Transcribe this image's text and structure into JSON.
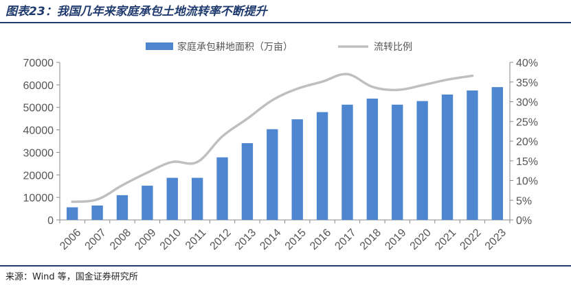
{
  "figure": {
    "title": "图表23：我国几年来家庭承包土地流转率不断提升",
    "source": "来源：Wind 等，国金证券研究所"
  },
  "colors": {
    "bar": "#4f86d0",
    "line": "#bfbfbf",
    "rule": "#1f3a6e",
    "axis": "#888888"
  },
  "chart_data": {
    "type": "bar",
    "title": "",
    "xlabel": "",
    "ylabel": "",
    "categories": [
      "2006",
      "2007",
      "2008",
      "2009",
      "2010",
      "2011",
      "2012",
      "2013",
      "2014",
      "2015",
      "2016",
      "2017",
      "2018",
      "2019",
      "2020",
      "2021",
      "2022",
      "2023"
    ],
    "series": [
      {
        "name": "家庭承包耕地面积（万亩）",
        "type": "bar",
        "axis": "left",
        "values": [
          5600,
          6400,
          11000,
          15200,
          18700,
          18700,
          27800,
          34100,
          40300,
          44700,
          47900,
          51200,
          53900,
          51200,
          52800,
          55700,
          57500,
          59000
        ]
      },
      {
        "name": "流转比例",
        "type": "line",
        "axis": "right",
        "values": [
          4.6,
          5.2,
          8.8,
          12.0,
          14.7,
          14.7,
          21.2,
          25.7,
          30.4,
          33.3,
          35.1,
          37.0,
          33.8,
          33.0,
          34.2,
          35.6,
          36.6,
          null
        ]
      }
    ],
    "ylim_left": [
      0,
      70000
    ],
    "yticks_left": [
      "0",
      "10000",
      "20000",
      "30000",
      "40000",
      "50000",
      "60000",
      "70000"
    ],
    "ylim_right": [
      0,
      40
    ],
    "yticks_right": [
      "0%",
      "5%",
      "10%",
      "15%",
      "20%",
      "25%",
      "30%",
      "35%",
      "40%"
    ],
    "grid": false,
    "legend_position": "top-center"
  }
}
